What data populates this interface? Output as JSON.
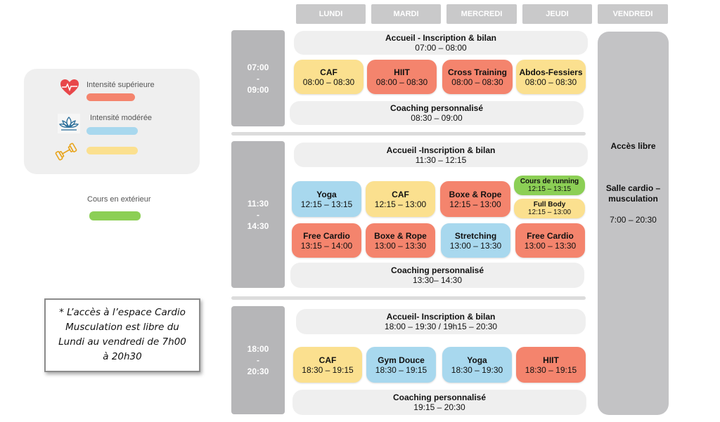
{
  "days": [
    "LUNDI",
    "MARDI",
    "MERCREDI",
    "JEUDI",
    "VENDREDI"
  ],
  "legend": {
    "high_label": "Intensité supérieure",
    "moderate_label": "Intensité modérée",
    "outdoor_label": "Cours en extérieur",
    "colors": {
      "high": "#f4846d",
      "moderate": "#a8d8ee",
      "strength": "#fbe08f",
      "outdoor": "#8ccf55"
    }
  },
  "note": {
    "line1": "* L’accès à l’espace Cardio",
    "line2": "Musculation est libre du",
    "line3": "Lundi au vendredi de 7h00",
    "line4": "à 20h30"
  },
  "morning": {
    "time_start": "07:00",
    "dash": "-",
    "time_end": "09:00",
    "accueil": {
      "title": "Accueil - Inscription & bilan",
      "hours": "07:00 – 08:00"
    },
    "classes": [
      {
        "title": "CAF",
        "hours": "08:00 – 08:30",
        "color": "#fbe08f"
      },
      {
        "title": "HIIT",
        "hours": "08:00 – 08:30",
        "color": "#f4846d"
      },
      {
        "title": "Cross Training",
        "hours": "08:00 – 08:30",
        "color": "#f4846d"
      },
      {
        "title": "Abdos-Fessiers",
        "hours": "08:00 – 08:30",
        "color": "#fbe08f"
      }
    ],
    "coaching": {
      "title": "Coaching personnalisé",
      "hours": "08:30 – 09:00"
    }
  },
  "midday": {
    "time_start": "11:30",
    "dash": "-",
    "time_end": "14:30",
    "accueil": {
      "title": "Accueil -Inscription & bilan",
      "hours": "11:30 – 12:15"
    },
    "row1": [
      {
        "title": "Yoga",
        "hours": "12:15 – 13:15",
        "color": "#a8d8ee"
      },
      {
        "title": "CAF",
        "hours": "12:15 – 13:00",
        "color": "#fbe08f"
      },
      {
        "title": "Boxe & Rope",
        "hours": "12:15 – 13:00",
        "color": "#f4846d"
      }
    ],
    "running": {
      "title": "Cours de running",
      "hours": "12:15 – 13:15",
      "color": "#8ccf55"
    },
    "fullbody": {
      "title": "Full Body",
      "hours": "12:15 – 13:00",
      "color": "#fbe08f"
    },
    "row2": [
      {
        "title": "Free Cardio",
        "hours": "13:15 – 14:00",
        "color": "#f4846d"
      },
      {
        "title": "Boxe & Rope",
        "hours": "13:00 – 13:30",
        "color": "#f4846d"
      },
      {
        "title": "Stretching",
        "hours": "13:00 – 13:30",
        "color": "#a8d8ee"
      },
      {
        "title": "Free Cardio",
        "hours": "13:00 – 13:30",
        "color": "#f4846d"
      }
    ],
    "coaching": {
      "title": "Coaching personnalisé",
      "hours": "13:30– 14:30"
    }
  },
  "evening": {
    "time_start": "18:00",
    "dash": "-",
    "time_end": "20:30",
    "accueil": {
      "title": "Accueil- Inscription & bilan",
      "hours": "18:00 – 19:30 / 19h15 – 20:30"
    },
    "classes": [
      {
        "title": "CAF",
        "hours": "18:30 – 19:15",
        "color": "#fbe08f"
      },
      {
        "title": "Gym Douce",
        "hours": "18:30 – 19:15",
        "color": "#a8d8ee"
      },
      {
        "title": "Yoga",
        "hours": "18:30 – 19:30",
        "color": "#a8d8ee"
      },
      {
        "title": "HIIT",
        "hours": "18:30 – 19:15",
        "color": "#f4846d"
      }
    ],
    "coaching": {
      "title": "Coaching personnalisé",
      "hours": "19:15 – 20:30"
    }
  },
  "friday": {
    "access": "Accès libre",
    "room_line1": "Salle cardio –",
    "room_line2": "musculation",
    "hours": "7:00 – 20:30"
  }
}
